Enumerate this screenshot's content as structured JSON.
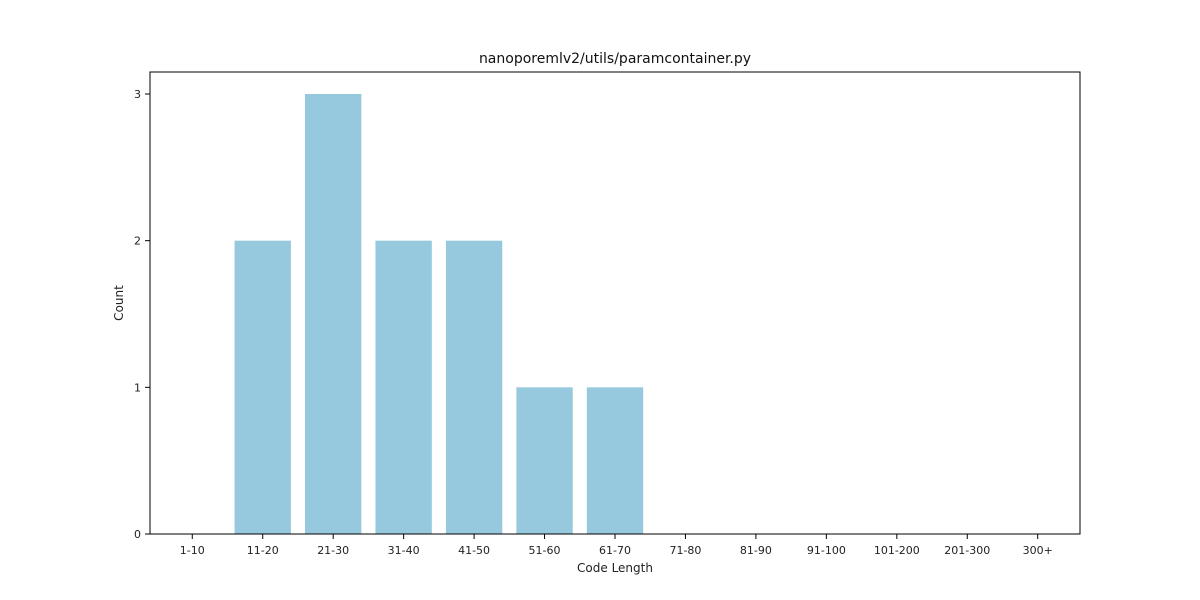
{
  "chart_data": {
    "type": "bar",
    "title": "nanoporemlv2/utils/paramcontainer.py",
    "xlabel": "Code Length",
    "ylabel": "Count",
    "categories": [
      "1-10",
      "11-20",
      "21-30",
      "31-40",
      "41-50",
      "51-60",
      "61-70",
      "71-80",
      "81-90",
      "91-100",
      "101-200",
      "201-300",
      "300+"
    ],
    "values": [
      0,
      2,
      3,
      2,
      2,
      1,
      1,
      0,
      0,
      0,
      0,
      0,
      0
    ],
    "yticks": [
      0,
      1,
      2,
      3
    ],
    "ylim": [
      0,
      3.15
    ],
    "grid": false,
    "bar_color": "#96c9dd",
    "axis_color": "#000000"
  }
}
